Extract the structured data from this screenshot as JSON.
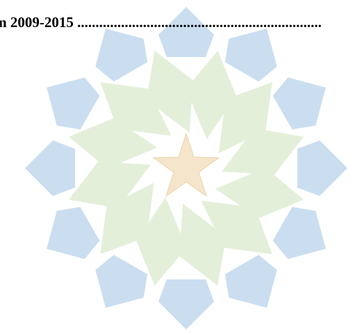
{
  "document": {
    "line": "n 2009-2015 ..................................................................."
  }
}
